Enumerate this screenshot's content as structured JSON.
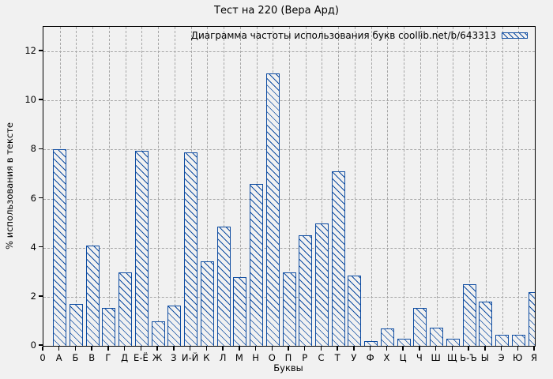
{
  "chart_data": {
    "type": "bar",
    "title": "Тест на 220 (Вера Ард)",
    "legend": "Диаграмма частоты использования букв coollib.net/b/643313",
    "legend_position": "top-right-inside",
    "xlabel": "Буквы",
    "ylabel": "% использования в тексте",
    "origin_label": "0",
    "categories": [
      "А",
      "Б",
      "В",
      "Г",
      "Д",
      "Е-Ё",
      "Ж",
      "З",
      "И-Й",
      "К",
      "Л",
      "М",
      "Н",
      "О",
      "П",
      "Р",
      "С",
      "Т",
      "У",
      "Ф",
      "Х",
      "Ц",
      "Ч",
      "Ш",
      "Щ",
      "Ь-Ъ",
      "Ы",
      "Э",
      "Ю",
      "Я"
    ],
    "values": [
      8.0,
      1.7,
      4.1,
      1.55,
      3.0,
      7.95,
      1.0,
      1.65,
      7.9,
      3.45,
      4.85,
      2.8,
      6.6,
      11.1,
      3.0,
      4.5,
      5.0,
      7.1,
      2.85,
      0.2,
      0.7,
      0.3,
      1.55,
      0.75,
      0.3,
      2.5,
      1.8,
      0.45,
      0.45,
      2.2
    ],
    "yticks": [
      0,
      2,
      4,
      6,
      8,
      10,
      12
    ],
    "ylim": [
      0,
      13
    ],
    "grid": true,
    "colors": {
      "bar": "#0e4ca1",
      "grid": "#a6a6a6",
      "axis": "#000000",
      "background": "#f1f1f1"
    }
  }
}
